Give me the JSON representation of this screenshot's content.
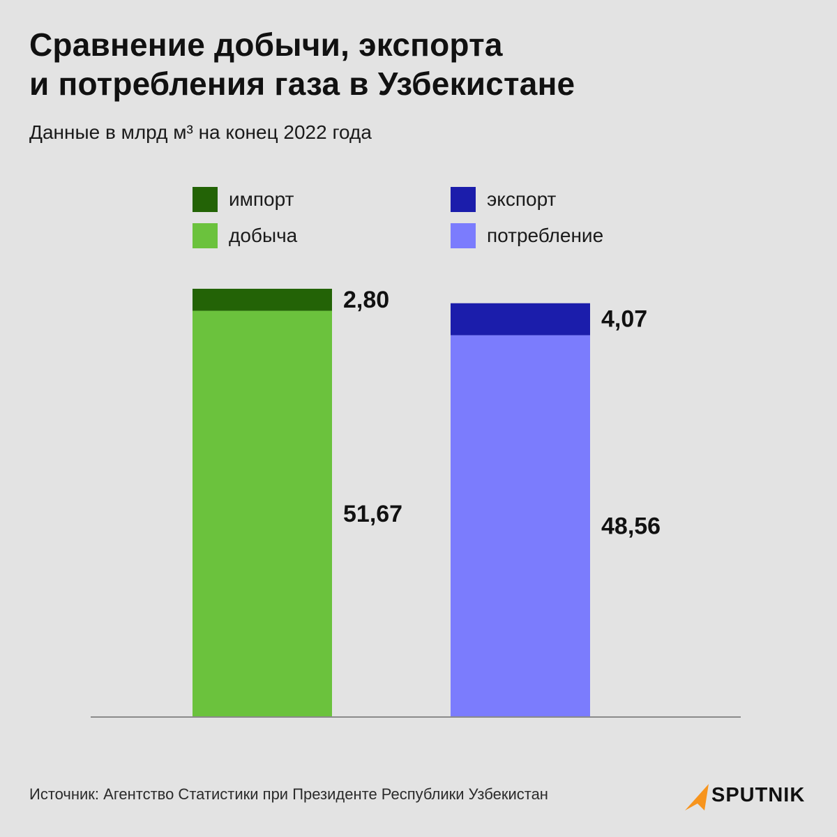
{
  "title_line1": "Сравнение добычи, экспорта",
  "title_line2": "и потребления газа в Узбекистане",
  "subtitle": "Данные в млрд м³ на конец 2022 года",
  "legend": [
    {
      "label": "импорт",
      "color": "#236306"
    },
    {
      "label": "экспорт",
      "color": "#1b1dab"
    },
    {
      "label": "добыча",
      "color": "#6bc23d"
    },
    {
      "label": "потребление",
      "color": "#7b7cfd"
    }
  ],
  "chart_data": {
    "type": "bar",
    "stacked": true,
    "categories": [
      "",
      ""
    ],
    "series": [
      {
        "name": "добыча",
        "values": [
          51.67,
          null
        ],
        "color": "#6bc23d"
      },
      {
        "name": "импорт",
        "values": [
          2.8,
          null
        ],
        "color": "#236306"
      },
      {
        "name": "потребление",
        "values": [
          null,
          48.56
        ],
        "color": "#7b7cfd"
      },
      {
        "name": "экспорт",
        "values": [
          null,
          4.07
        ],
        "color": "#1b1dab"
      }
    ],
    "data_labels": {
      "добыча": "51,67",
      "импорт": "2,80",
      "потребление": "48,56",
      "экспорт": "4,07"
    },
    "ylim": [
      0,
      54.47
    ],
    "grid": false
  },
  "source": "Источник: Агентство Статистики при Президенте Республики Узбекистан",
  "logo": {
    "name": "SPUTNIK",
    "color": "#f7941d"
  }
}
